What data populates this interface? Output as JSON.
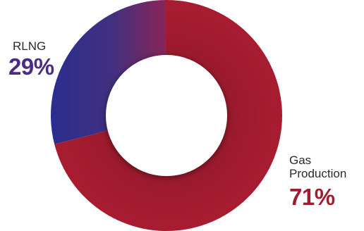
{
  "chart_data": {
    "type": "pie",
    "variant": "donut",
    "slices": [
      {
        "label": "Gas Production",
        "value": 71,
        "display": "71%",
        "color": "#a31b2e"
      },
      {
        "label": "RLNG",
        "value": 29,
        "display": "29%",
        "color": "#2a2e8f"
      }
    ],
    "colors": {
      "gas_production": "#a31b2e",
      "rlng_start": "#2a2e8f",
      "rlng_end": "#8a2456",
      "label_text": "#2b2b2b",
      "rlng_pct_text": "#4b2c84",
      "gas_pct_text": "#a01c2f"
    }
  },
  "labels": {
    "rlng_name": "RLNG",
    "rlng_pct": "29%",
    "gas_name": "Gas Production",
    "gas_pct": "71%"
  }
}
